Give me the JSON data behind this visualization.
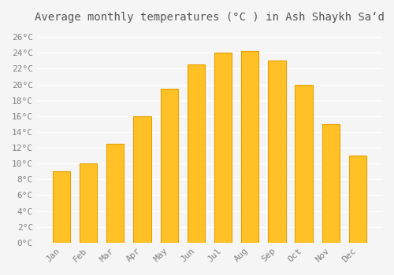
{
  "title": "Average monthly temperatures (°C ) in Ash Shaykh Sa‘d",
  "months": [
    "Jan",
    "Feb",
    "Mar",
    "Apr",
    "May",
    "Jun",
    "Jul",
    "Aug",
    "Sep",
    "Oct",
    "Nov",
    "Dec"
  ],
  "values": [
    9,
    10,
    12.5,
    16,
    19.5,
    22.5,
    24,
    24.2,
    23,
    20,
    15,
    11
  ],
  "bar_color": "#FFC125",
  "bar_edge_color": "#E8A000",
  "background_color": "#F5F5F5",
  "grid_color": "#FFFFFF",
  "text_color": "#808080",
  "title_color": "#555555",
  "ylim": [
    0,
    27
  ],
  "yticks": [
    0,
    2,
    4,
    6,
    8,
    10,
    12,
    14,
    16,
    18,
    20,
    22,
    24,
    26
  ],
  "figsize": [
    5.0,
    3.5
  ],
  "dpi": 100
}
